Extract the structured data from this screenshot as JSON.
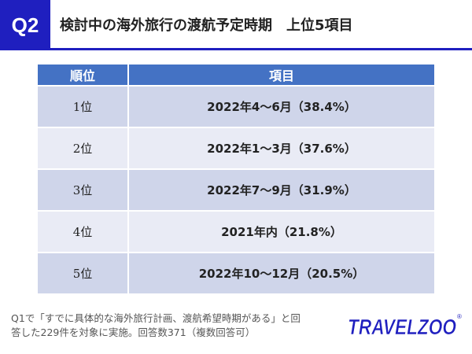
{
  "badge": "Q2",
  "title": "検討中の海外旅行の渡航予定時期　上位5項目",
  "table": {
    "headers": {
      "rank": "順位",
      "item": "項目"
    },
    "rows": [
      {
        "rank": "1位",
        "item": "2022年4～6月（38.4%）"
      },
      {
        "rank": "2位",
        "item": "2022年1～3月（37.6%）"
      },
      {
        "rank": "3位",
        "item": "2022年7～9月（31.9%）"
      },
      {
        "rank": "4位",
        "item": "2021年内（21.8%）"
      },
      {
        "rank": "5位",
        "item": "2022年10～12月（20.5%）"
      }
    ]
  },
  "note": {
    "line1": "Q1で「すでに具体的な海外旅行計画、渡航希望時期がある」と回",
    "line2": "答した229件を対象に実施。回答数371（複数回答可）"
  },
  "logo": {
    "text": "TRAVELZOO",
    "mark": "®",
    "color": "#1f1fbf",
    "accent": "#e81818"
  }
}
